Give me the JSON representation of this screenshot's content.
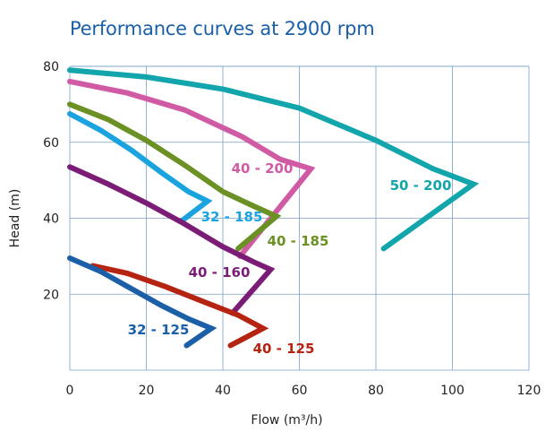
{
  "chart_data": {
    "type": "line",
    "title": "Performance curves at 2900 rpm",
    "xlabel": "Flow (m³/h)",
    "ylabel": "Head (m)",
    "xlim": [
      0,
      120
    ],
    "ylim": [
      0,
      80
    ],
    "xticks": [
      "0",
      "20",
      "40",
      "60",
      "80",
      "100",
      "120"
    ],
    "yticks": [
      "20",
      "40",
      "60",
      "80"
    ],
    "grid": true,
    "series": [
      {
        "name": "50 - 200",
        "color": "#12a5ac",
        "x": [
          0,
          20,
          40,
          60,
          80,
          95,
          105.5,
          82
        ],
        "y": [
          79,
          77.2,
          74,
          69,
          60.5,
          53,
          49,
          32
        ]
      },
      {
        "name": "40 - 200",
        "color": "#d05aa4",
        "x": [
          0,
          15,
          30,
          45,
          55,
          63,
          44.5
        ],
        "y": [
          76,
          73,
          68.5,
          61.5,
          55.5,
          53,
          30
        ]
      },
      {
        "name": "40 - 185",
        "color": "#6b9023",
        "x": [
          0,
          10,
          20,
          30,
          40,
          48,
          54,
          44
        ],
        "y": [
          70,
          66,
          60.5,
          54,
          47,
          43.2,
          40.5,
          32
        ]
      },
      {
        "name": "32 - 185",
        "color": "#1aa3df",
        "x": [
          0,
          8,
          16,
          24,
          31,
          36,
          29.5
        ],
        "y": [
          67.5,
          63.2,
          58,
          52,
          47,
          44.5,
          39.5
        ]
      },
      {
        "name": "40 - 160",
        "color": "#7b1d76",
        "x": [
          0,
          10,
          20,
          30,
          40,
          48,
          52.5,
          42.5
        ],
        "y": [
          53.5,
          49,
          44,
          38.5,
          32.5,
          28.5,
          26.5,
          15
        ]
      },
      {
        "name": "40 - 125",
        "color": "#b52410",
        "x": [
          6,
          15,
          25,
          35,
          44,
          50.5,
          42
        ],
        "y": [
          27.5,
          25.5,
          22,
          18,
          14.5,
          11,
          6.5
        ]
      },
      {
        "name": "32 - 125",
        "color": "#1a5fa8",
        "x": [
          0,
          8,
          16,
          24,
          31,
          37,
          30.5
        ],
        "y": [
          29.5,
          26,
          21.5,
          17,
          13.5,
          11,
          6.5
        ]
      }
    ]
  }
}
